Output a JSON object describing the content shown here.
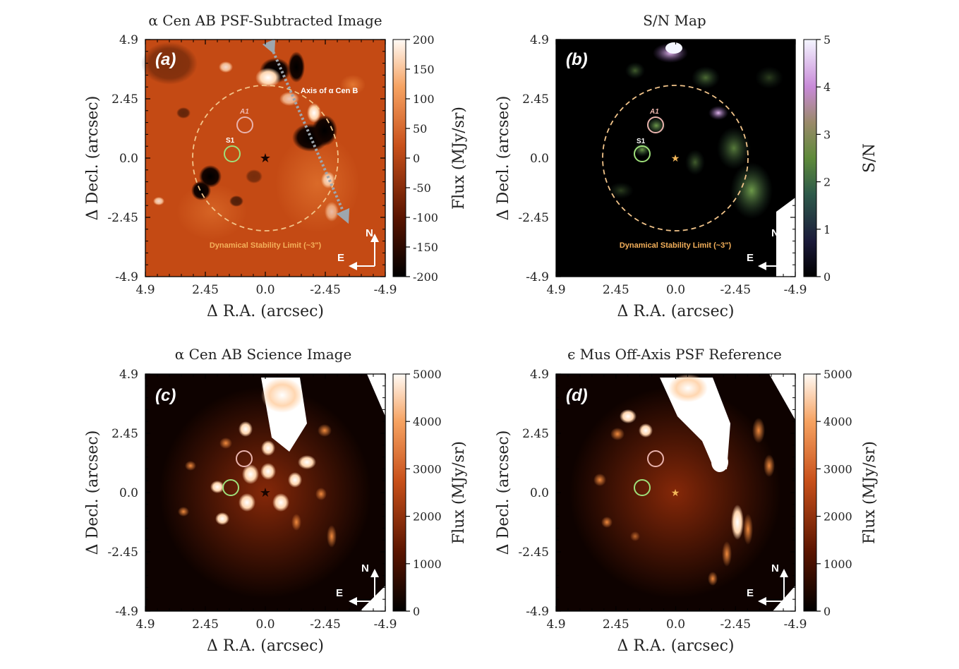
{
  "figure": {
    "axis_ticks": [
      "4.9",
      "2.45",
      "0.0",
      "-2.45",
      "-4.9"
    ],
    "xlabel": "Δ R.A. (arcsec)",
    "ylabel": "Δ Decl. (arcsec)",
    "compass": {
      "north": "N",
      "east": "E"
    },
    "colors": {
      "orange_dark": "#1a0500",
      "orange_mid": "#c8501a",
      "orange_light": "#fff3e6",
      "star": "#f2b75a",
      "a1_circle": "#e9b3ad",
      "s1_circle": "#9ee07a"
    }
  },
  "panels": [
    {
      "id": "a",
      "label": "(a)",
      "title": "α Cen AB PSF-Subtracted Image",
      "cbar_label": "Flux (MJy/sr)",
      "cbar_ticks": [
        "200",
        "150",
        "100",
        "50",
        "0",
        "-50",
        "-100",
        "-150",
        "-200"
      ],
      "stability_label": "Dynamical Stability Limit (~3\")",
      "axis_b_label": "Axis of α Cen B",
      "a1_label": "A1",
      "s1_label": "S1"
    },
    {
      "id": "b",
      "label": "(b)",
      "title": "S/N Map",
      "cbar_label": "S/N",
      "cbar_ticks": [
        "5",
        "4",
        "3",
        "2",
        "1",
        "0"
      ],
      "stability_label": "Dynamical Stability Limit (~3\")",
      "a1_label": "A1",
      "s1_label": "S1"
    },
    {
      "id": "c",
      "label": "(c)",
      "title": "α Cen AB Science Image",
      "cbar_label": "Flux (MJy/sr)",
      "cbar_ticks": [
        "5000",
        "4000",
        "3000",
        "2000",
        "1000",
        "0"
      ]
    },
    {
      "id": "d",
      "label": "(d)",
      "title": "ϵ Mus Off-Axis PSF Reference",
      "cbar_label": "Flux (MJy/sr)",
      "cbar_ticks": [
        "5000",
        "4000",
        "3000",
        "2000",
        "1000",
        "0"
      ]
    }
  ]
}
